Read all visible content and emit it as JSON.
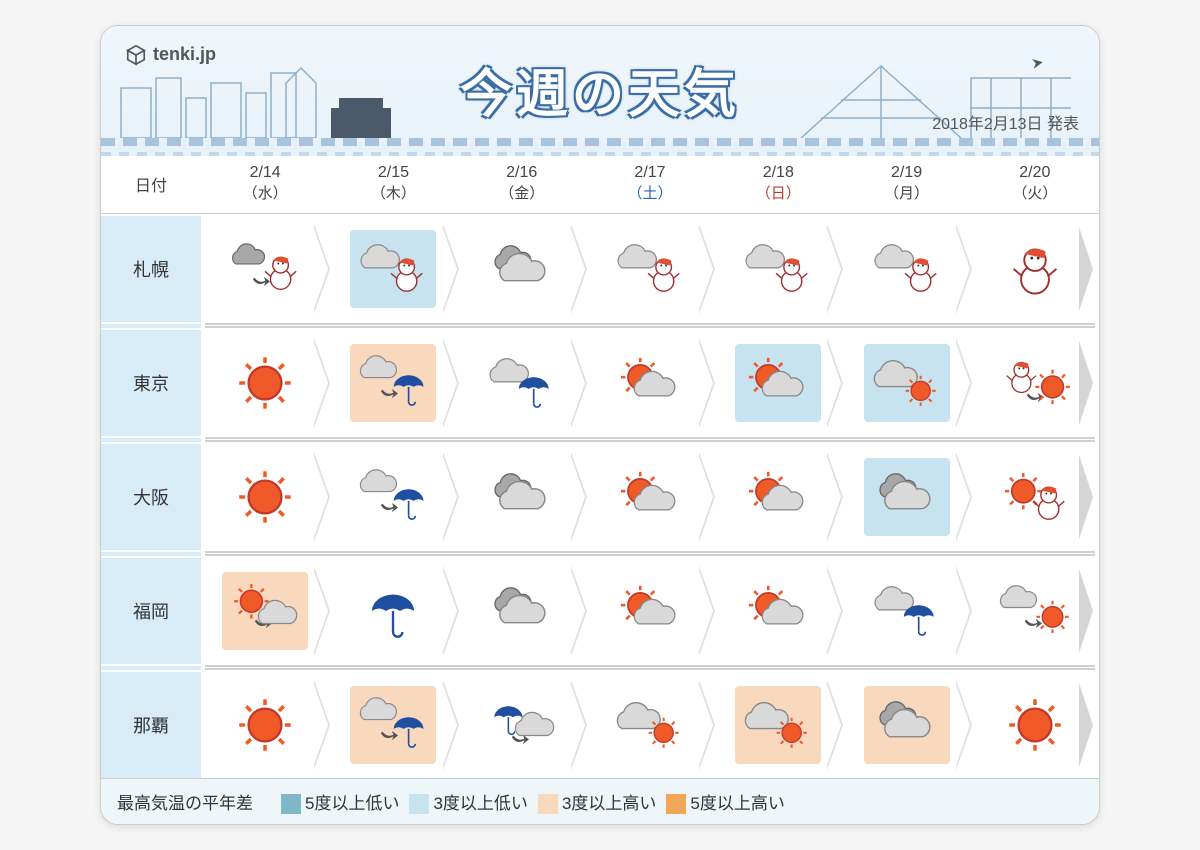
{
  "brand": "tenki.jp",
  "title": "今週の天気",
  "issued": "2018年2月13日  発表",
  "date_header_label": "日付",
  "colors": {
    "header_bg_top": "#f0f6fb",
    "header_bg_bottom": "#e8f2fa",
    "title_stroke": "#3a6ea5",
    "city_col_bg": "#d7ecf6",
    "arrow_gray": "#e0e0e0",
    "divider_gray": "#d0d0d0",
    "saturday": "#2a63c0",
    "sunday": "#c0392b",
    "sun_fill": "#f05a28",
    "sun_stroke": "#c0392b",
    "cloud_light": "#d9d9d9",
    "cloud_dark": "#a8a8a8",
    "cloud_stroke": "#888888",
    "umbrella": "#1f4fa0",
    "snow_body": "#ffffff",
    "snow_stroke": "#a03030",
    "snow_hat": "#e05030",
    "legend_bg": "#eef6fa"
  },
  "highlight_colors": {
    "low5": "#7fb8c9",
    "low3": "#c7e3f0",
    "high3": "#f9d9bd",
    "high5": "#f2a65a"
  },
  "legend": {
    "title": "最高気温の平年差",
    "items": [
      {
        "key": "low5",
        "label": "5度以上低い"
      },
      {
        "key": "low3",
        "label": "3度以上低い"
      },
      {
        "key": "high3",
        "label": "3度以上高い"
      },
      {
        "key": "high5",
        "label": "5度以上高い"
      }
    ]
  },
  "dates": [
    {
      "md": "2/14",
      "dow": "（水）",
      "cls": ""
    },
    {
      "md": "2/15",
      "dow": "（木）",
      "cls": ""
    },
    {
      "md": "2/16",
      "dow": "（金）",
      "cls": ""
    },
    {
      "md": "2/17",
      "dow": "（土）",
      "cls": "dow-sat"
    },
    {
      "md": "2/18",
      "dow": "（日）",
      "cls": "dow-sun"
    },
    {
      "md": "2/19",
      "dow": "（月）",
      "cls": ""
    },
    {
      "md": "2/20",
      "dow": "（火）",
      "cls": ""
    }
  ],
  "cities": [
    {
      "name": "札幌",
      "cells": [
        {
          "icon": "cloud-snow-later",
          "hl": null
        },
        {
          "icon": "cloud-snow",
          "hl": "low3"
        },
        {
          "icon": "cloudy",
          "hl": null
        },
        {
          "icon": "cloud-snow",
          "hl": null
        },
        {
          "icon": "cloud-snow",
          "hl": null
        },
        {
          "icon": "cloud-snow",
          "hl": null
        },
        {
          "icon": "snowman",
          "hl": null
        }
      ]
    },
    {
      "name": "東京",
      "cells": [
        {
          "icon": "sunny",
          "hl": null
        },
        {
          "icon": "cloud-rain-later",
          "hl": "high3"
        },
        {
          "icon": "cloud-rain",
          "hl": null
        },
        {
          "icon": "sun-cloud",
          "hl": null
        },
        {
          "icon": "sun-cloud",
          "hl": "low3"
        },
        {
          "icon": "cloud-sun",
          "hl": "low3"
        },
        {
          "icon": "snow-sun-later",
          "hl": null
        }
      ]
    },
    {
      "name": "大阪",
      "cells": [
        {
          "icon": "sunny",
          "hl": null
        },
        {
          "icon": "cloud-rain-later",
          "hl": null
        },
        {
          "icon": "cloudy",
          "hl": null
        },
        {
          "icon": "sun-cloud",
          "hl": null
        },
        {
          "icon": "sun-cloud",
          "hl": null
        },
        {
          "icon": "cloudy",
          "hl": "low3"
        },
        {
          "icon": "sun-snow",
          "hl": null
        }
      ]
    },
    {
      "name": "福岡",
      "cells": [
        {
          "icon": "sun-cloud-later",
          "hl": "high3"
        },
        {
          "icon": "rain",
          "hl": null
        },
        {
          "icon": "cloudy",
          "hl": null
        },
        {
          "icon": "sun-cloud",
          "hl": null
        },
        {
          "icon": "sun-cloud",
          "hl": null
        },
        {
          "icon": "cloud-rain",
          "hl": null
        },
        {
          "icon": "cloud-sun-later",
          "hl": null
        }
      ]
    },
    {
      "name": "那覇",
      "cells": [
        {
          "icon": "sunny",
          "hl": null
        },
        {
          "icon": "cloud-rain-later",
          "hl": "high3"
        },
        {
          "icon": "rain-cloud-later",
          "hl": null
        },
        {
          "icon": "cloud-sun",
          "hl": null
        },
        {
          "icon": "cloud-sun",
          "hl": "high3"
        },
        {
          "icon": "cloudy",
          "hl": "high3"
        },
        {
          "icon": "sunny",
          "hl": null
        }
      ]
    }
  ]
}
